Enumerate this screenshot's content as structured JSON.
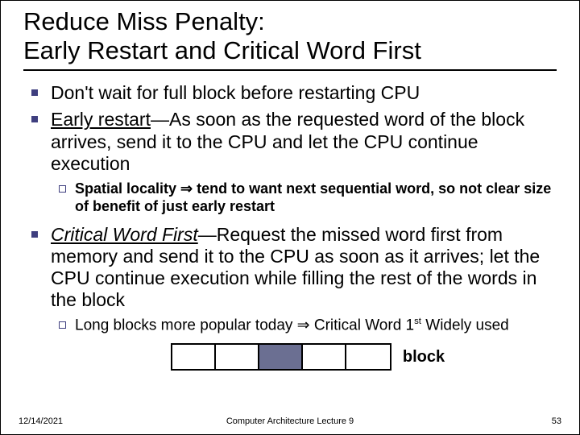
{
  "title": {
    "line1": "Reduce Miss Penalty:",
    "line2": "Early Restart and Critical Word First"
  },
  "bullets": {
    "b1": "Don't wait for full block before restarting CPU",
    "b2_term": "Early restart",
    "b2_rest": "—As soon as the requested word of the block arrives, send it to the CPU and let the CPU continue execution",
    "b2_sub_a": "Spatial locality ",
    "b2_sub_b": " tend to want next sequential word, so not clear size of benefit of just early restart",
    "b3_term": "Critical Word First",
    "b3_rest": "—Request the missed word first from memory and send it to the CPU as soon as it arrives; let the CPU continue execution while filling the rest of the words in the block",
    "b3_sub_a": "Long blocks more popular today ",
    "b3_sub_b": " Critical Word 1",
    "b3_sub_sup": "st",
    "b3_sub_c": " Widely used"
  },
  "arrow": "⇒",
  "diagram": {
    "cells": 5,
    "highlight_index": 2,
    "cell_bg": "#ffffff",
    "highlight_bg": "#6b6f92",
    "label": "block"
  },
  "footer": {
    "date": "12/14/2021",
    "center": "Computer Architecture Lecture 9",
    "page": "53"
  }
}
